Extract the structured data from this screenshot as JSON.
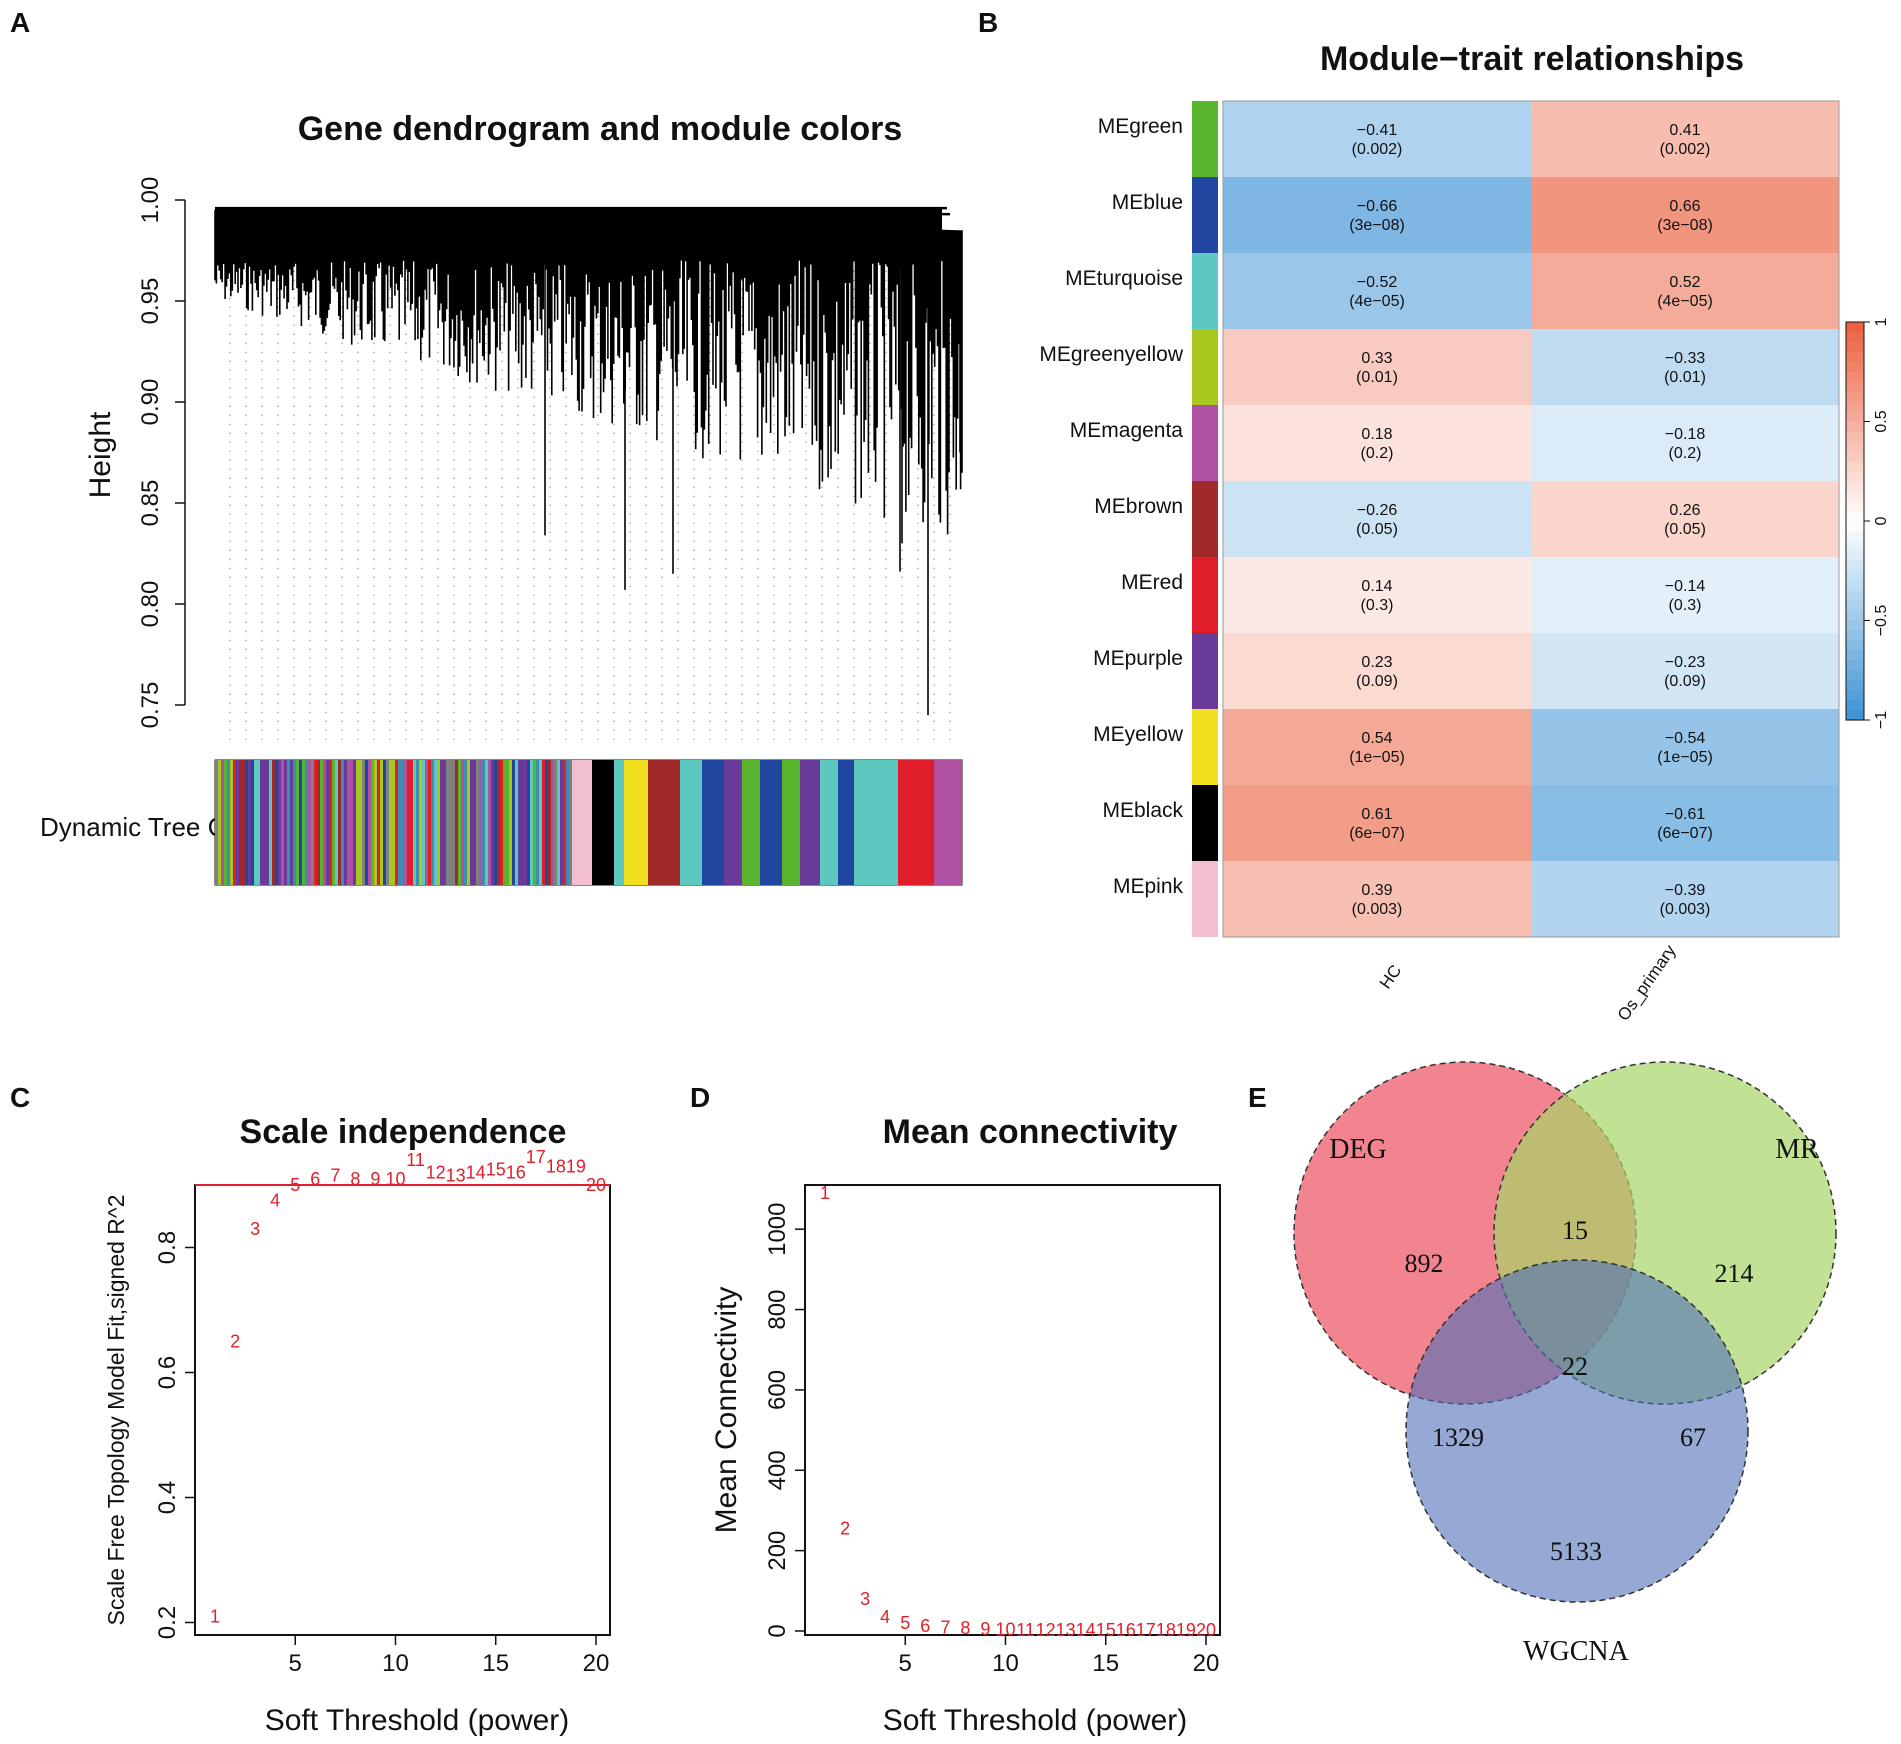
{
  "panel_labels": [
    "A",
    "B",
    "C",
    "D",
    "E"
  ],
  "chart_data": [
    {
      "id": "A",
      "type": "dendrogram",
      "title": "Gene dendrogram and module colors",
      "ylabel": "Height",
      "ylim": [
        0.74,
        1.0
      ],
      "yticks": [
        "0.75",
        "0.80",
        "0.85",
        "0.90",
        "0.95",
        "1.00"
      ],
      "color_bar_label": "Dynamic Tree Cut",
      "module_colors": [
        "grey",
        "pink",
        "black",
        "yellow",
        "brown",
        "turquoise",
        "purple",
        "green",
        "blue",
        "turquoise",
        "red",
        "magenta"
      ]
    },
    {
      "id": "B",
      "type": "heatmap",
      "title": "Module−trait relationships",
      "traits": [
        "HC",
        "Os_primary"
      ],
      "modules": [
        {
          "name": "MEgreen",
          "color": "#5ab52e",
          "values": [
            {
              "r": "−0.41",
              "p": "(0.002)"
            },
            {
              "r": "0.41",
              "p": "(0.002)"
            }
          ]
        },
        {
          "name": "MEblue",
          "color": "#2046a0",
          "values": [
            {
              "r": "−0.66",
              "p": "(3e−08)"
            },
            {
              "r": "0.66",
              "p": "(3e−08)"
            }
          ]
        },
        {
          "name": "MEturquoise",
          "color": "#5cc8c0",
          "values": [
            {
              "r": "−0.52",
              "p": "(4e−05)"
            },
            {
              "r": "0.52",
              "p": "(4e−05)"
            }
          ]
        },
        {
          "name": "MEgreenyellow",
          "color": "#a8c820",
          "values": [
            {
              "r": "0.33",
              "p": "(0.01)"
            },
            {
              "r": "−0.33",
              "p": "(0.01)"
            }
          ]
        },
        {
          "name": "MEmagenta",
          "color": "#b050a0",
          "values": [
            {
              "r": "0.18",
              "p": "(0.2)"
            },
            {
              "r": "−0.18",
              "p": "(0.2)"
            }
          ]
        },
        {
          "name": "MEbrown",
          "color": "#a02a2a",
          "values": [
            {
              "r": "−0.26",
              "p": "(0.05)"
            },
            {
              "r": "0.26",
              "p": "(0.05)"
            }
          ]
        },
        {
          "name": "MEred",
          "color": "#e01e2a",
          "values": [
            {
              "r": "0.14",
              "p": "(0.3)"
            },
            {
              "r": "−0.14",
              "p": "(0.3)"
            }
          ]
        },
        {
          "name": "MEpurple",
          "color": "#6a3a98",
          "values": [
            {
              "r": "0.23",
              "p": "(0.09)"
            },
            {
              "r": "−0.23",
              "p": "(0.09)"
            }
          ]
        },
        {
          "name": "MEyellow",
          "color": "#f0e020",
          "values": [
            {
              "r": "0.54",
              "p": "(1e−05)"
            },
            {
              "r": "−0.54",
              "p": "(1e−05)"
            }
          ]
        },
        {
          "name": "MEblack",
          "color": "#000000",
          "values": [
            {
              "r": "0.61",
              "p": "(6e−07)"
            },
            {
              "r": "−0.61",
              "p": "(6e−07)"
            }
          ]
        },
        {
          "name": "MEpink",
          "color": "#f2bfd0",
          "values": [
            {
              "r": "0.39",
              "p": "(0.003)"
            },
            {
              "r": "−0.39",
              "p": "(0.003)"
            }
          ]
        }
      ],
      "numeric": [
        [
          -0.41,
          0.41
        ],
        [
          -0.66,
          0.66
        ],
        [
          -0.52,
          0.52
        ],
        [
          0.33,
          -0.33
        ],
        [
          0.18,
          -0.18
        ],
        [
          -0.26,
          0.26
        ],
        [
          0.14,
          -0.14
        ],
        [
          0.23,
          -0.23
        ],
        [
          0.54,
          -0.54
        ],
        [
          0.61,
          -0.61
        ],
        [
          0.39,
          -0.39
        ]
      ],
      "colorbar": {
        "ticks": [
          "1",
          "0.5",
          "0",
          "−0.5",
          "−1"
        ],
        "range": [
          -1,
          1
        ]
      }
    },
    {
      "id": "C",
      "type": "scatter",
      "title": "Scale independence",
      "xlabel": "Soft Threshold (power)",
      "ylabel": "Scale Free Topology Model Fit,signed R^2",
      "xlim": [
        0,
        20.7
      ],
      "ylim": [
        0.18,
        0.9
      ],
      "xticks": [
        "5",
        "10",
        "15",
        "20"
      ],
      "yticks": [
        "0.2",
        "0.4",
        "0.6",
        "0.8"
      ],
      "hline": 0.9,
      "powers": [
        1,
        2,
        3,
        4,
        5,
        6,
        7,
        8,
        9,
        10,
        11,
        12,
        13,
        14,
        15,
        16,
        17,
        18,
        19,
        20
      ],
      "values": [
        0.21,
        0.65,
        0.83,
        0.875,
        0.9,
        0.91,
        0.915,
        0.91,
        0.91,
        0.91,
        0.94,
        0.92,
        0.915,
        0.92,
        0.925,
        0.92,
        0.945,
        0.93,
        0.93,
        0.9
      ],
      "labels": [
        "1",
        "2",
        "3",
        "4",
        "5",
        "6",
        "7",
        "8",
        "9",
        "10",
        "11",
        "12",
        "13",
        "14",
        "15",
        "16",
        "17",
        "18",
        "19",
        "20"
      ]
    },
    {
      "id": "D",
      "type": "scatter",
      "title": "Mean connectivity",
      "xlabel": "Soft Threshold (power)",
      "ylabel": "Mean Connectivity",
      "xlim": [
        0,
        20.7
      ],
      "ylim": [
        -10,
        1110
      ],
      "xticks": [
        "5",
        "10",
        "15",
        "20"
      ],
      "yticks": [
        "0",
        "200",
        "400",
        "600",
        "800",
        "1000"
      ],
      "powers": [
        1,
        2,
        3,
        4,
        5,
        6,
        7,
        8,
        9,
        10,
        11,
        12,
        13,
        14,
        15,
        16,
        17,
        18,
        19,
        20
      ],
      "values": [
        1090,
        255,
        80,
        35,
        20,
        12,
        9,
        7,
        5,
        4,
        3,
        3,
        3,
        2,
        2,
        2,
        2,
        2,
        2,
        2
      ],
      "labels": [
        "1",
        "2",
        "3",
        "4",
        "5",
        "6",
        "7",
        "8",
        "9",
        "10",
        "11",
        "12",
        "13",
        "14",
        "15",
        "16",
        "17",
        "18",
        "19",
        "20"
      ]
    },
    {
      "id": "E",
      "type": "venn",
      "sets": [
        "DEG",
        "MR",
        "WGCNA"
      ],
      "regions": [
        {
          "sets": [
            "DEG"
          ],
          "label": "892"
        },
        {
          "sets": [
            "DEG",
            "MR"
          ],
          "label": "15"
        },
        {
          "sets": [
            "MR"
          ],
          "label": "214"
        },
        {
          "sets": [
            "DEG",
            "MR",
            "WGCNA"
          ],
          "label": "22"
        },
        {
          "sets": [
            "DEG",
            "WGCNA"
          ],
          "label": "1329"
        },
        {
          "sets": [
            "MR",
            "WGCNA"
          ],
          "label": "67"
        },
        {
          "sets": [
            "WGCNA"
          ],
          "label": "5133"
        }
      ]
    }
  ]
}
